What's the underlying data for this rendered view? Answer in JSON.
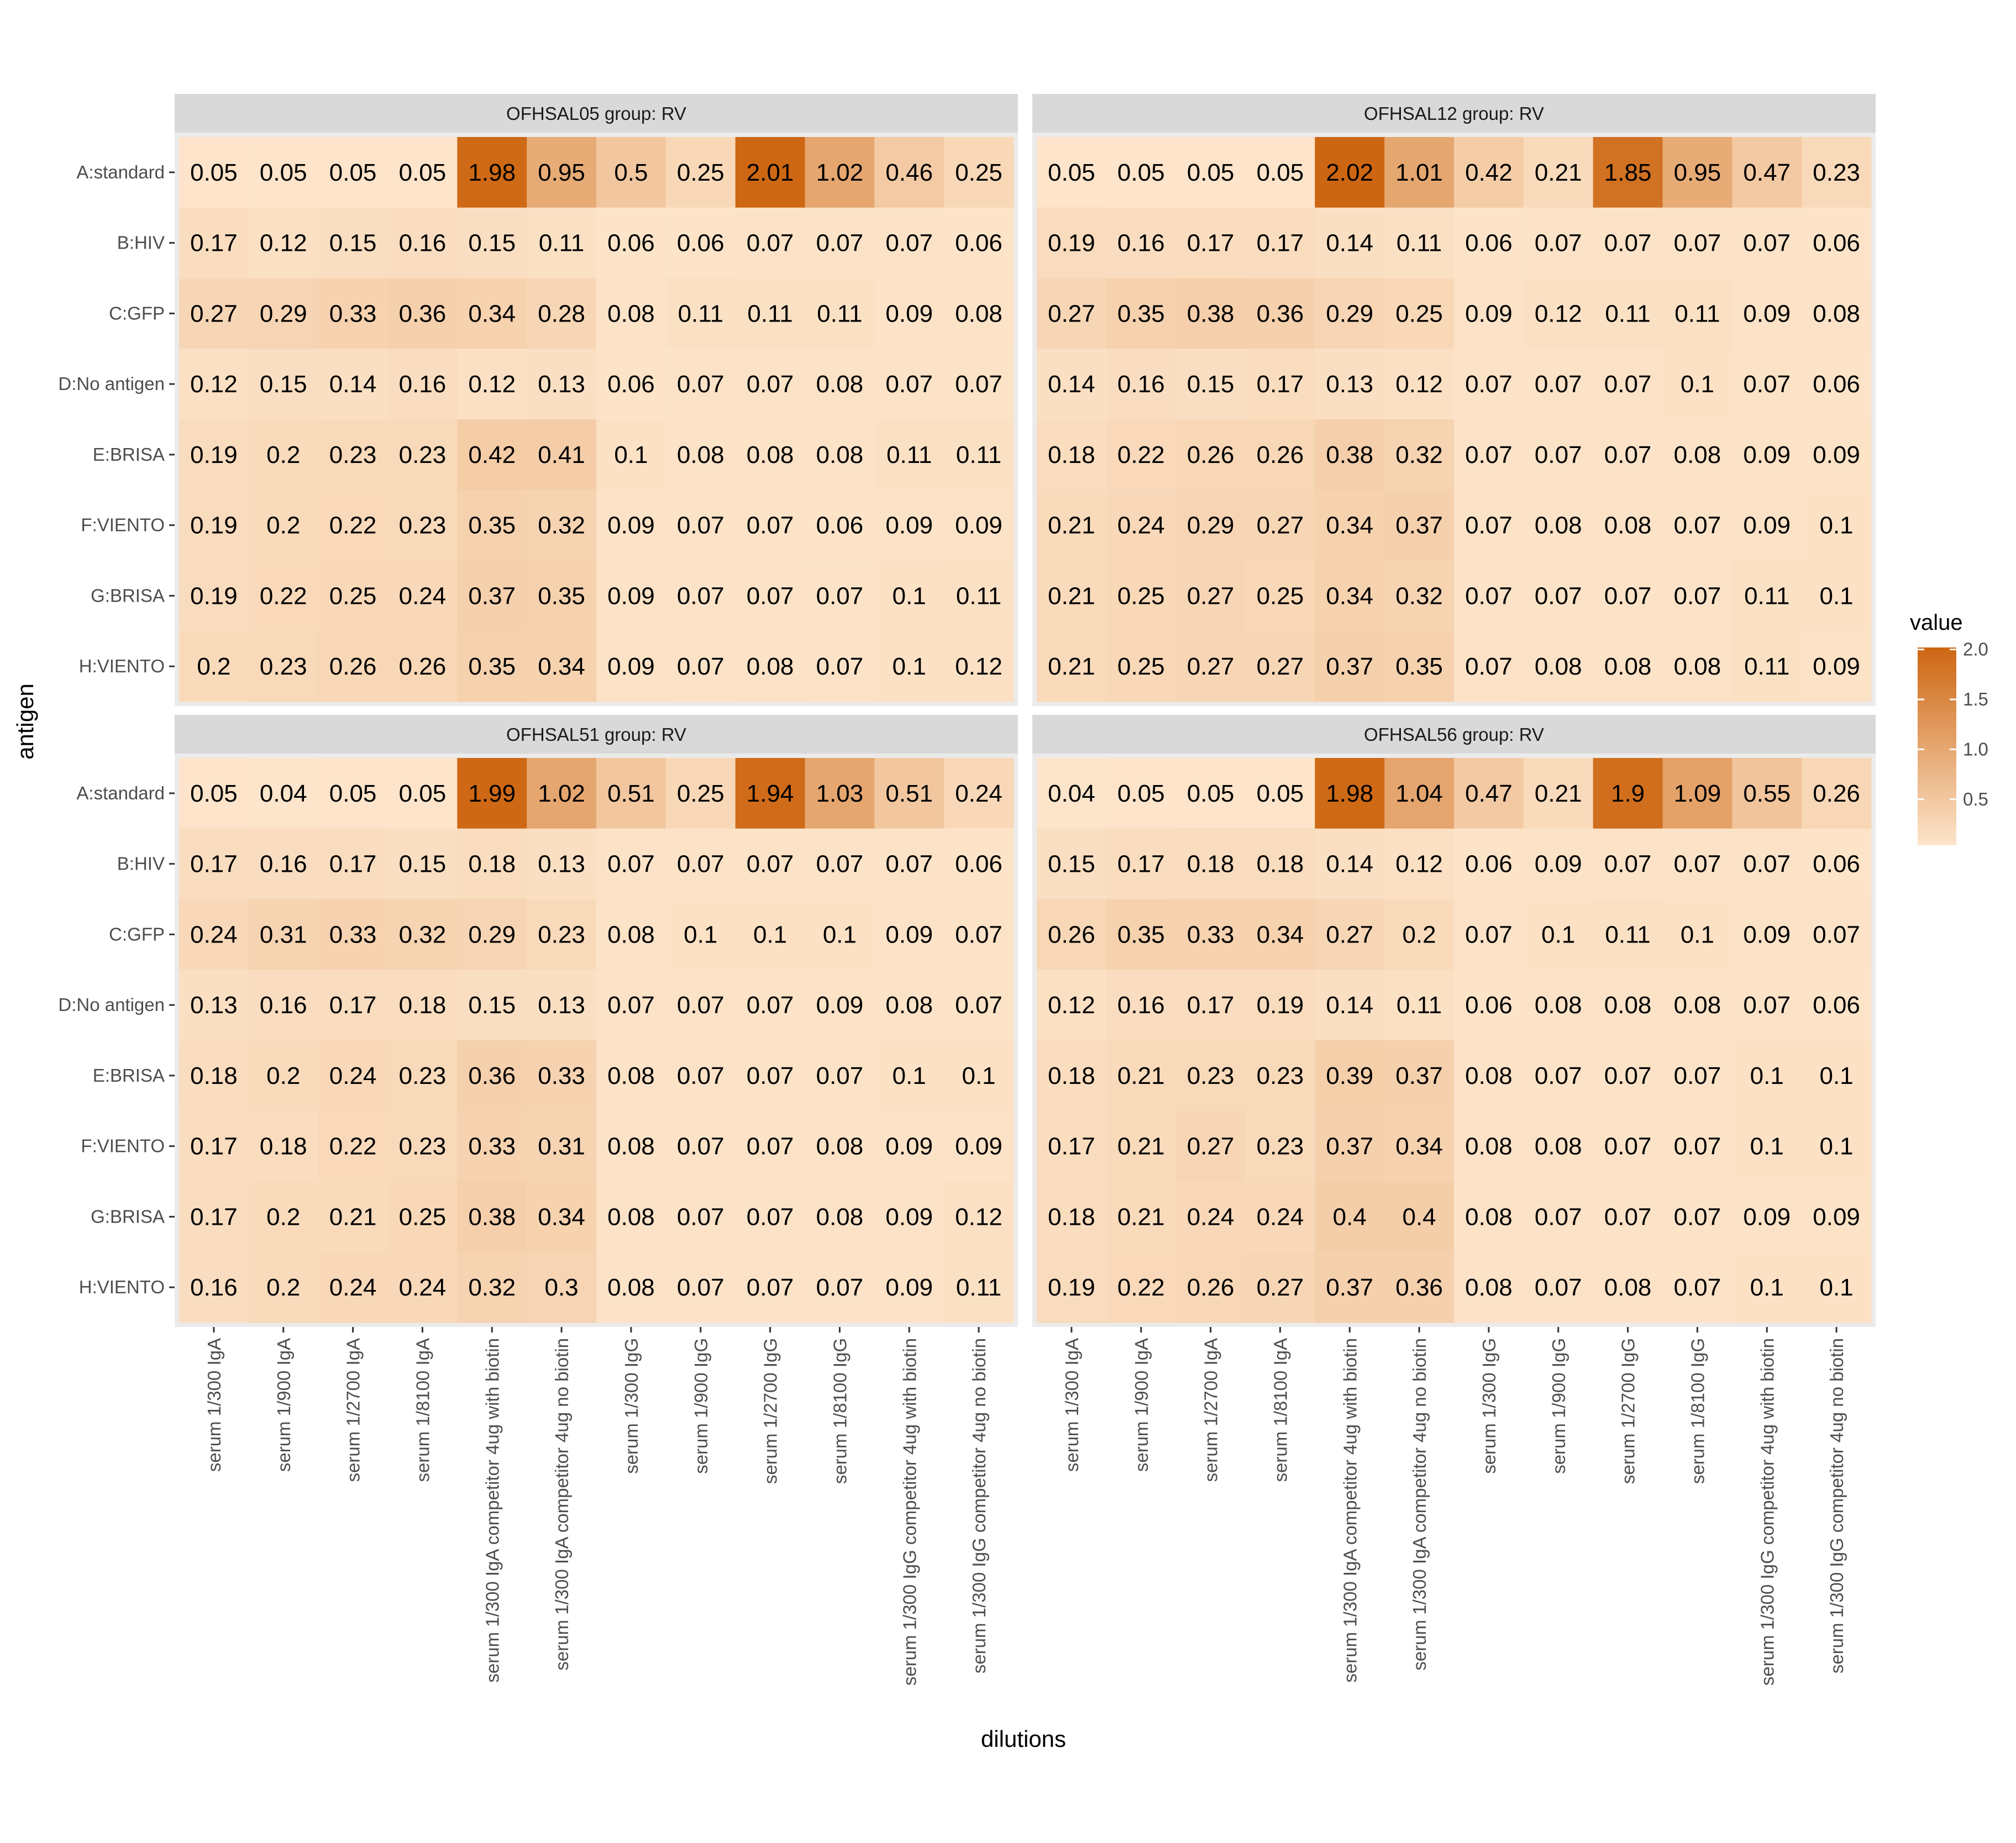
{
  "chart_data": {
    "type": "heatmap",
    "xlabel": "dilutions",
    "ylabel": "antigen",
    "legend": {
      "title": "value",
      "ticks": [
        2.0,
        1.5,
        1.0,
        0.5
      ],
      "tick_labels": [
        "2.0",
        "1.5",
        "1.0",
        "0.5"
      ],
      "range": [
        0.04,
        2.02
      ],
      "placement": "right"
    },
    "colors": {
      "low": "#fde5cb",
      "high": "#cd6612",
      "panel_bg": "#ebebeb",
      "strip_bg": "#d9d9d9"
    },
    "rows": [
      "A:standard",
      "B:HIV",
      "C:GFP",
      "D:No antigen",
      "E:BRISA",
      "F:VIENTO",
      "G:BRISA",
      "H:VIENTO"
    ],
    "columns": [
      "serum 1/300 IgA",
      "serum 1/900 IgA",
      "serum 1/2700 IgA",
      "serum 1/8100 IgA",
      "serum 1/300 IgA competitor 4ug with biotin",
      "serum 1/300 IgA competitor 4ug no biotin",
      "serum 1/300 IgG",
      "serum 1/900 IgG",
      "serum 1/2700 IgG",
      "serum 1/8100 IgG",
      "serum 1/300 IgG competitor 4ug with biotin",
      "serum 1/300 IgG competitor 4ug no biotin"
    ],
    "panels": [
      {
        "title": "OFHSAL05 group: RV",
        "values": [
          [
            0.05,
            0.05,
            0.05,
            0.05,
            1.98,
            0.95,
            0.5,
            0.25,
            2.01,
            1.02,
            0.46,
            0.25
          ],
          [
            0.17,
            0.12,
            0.15,
            0.16,
            0.15,
            0.11,
            0.06,
            0.06,
            0.07,
            0.07,
            0.07,
            0.06
          ],
          [
            0.27,
            0.29,
            0.33,
            0.36,
            0.34,
            0.28,
            0.08,
            0.11,
            0.11,
            0.11,
            0.09,
            0.08
          ],
          [
            0.12,
            0.15,
            0.14,
            0.16,
            0.12,
            0.13,
            0.06,
            0.07,
            0.07,
            0.08,
            0.07,
            0.07
          ],
          [
            0.19,
            0.2,
            0.23,
            0.23,
            0.42,
            0.41,
            0.1,
            0.08,
            0.08,
            0.08,
            0.11,
            0.11
          ],
          [
            0.19,
            0.2,
            0.22,
            0.23,
            0.35,
            0.32,
            0.09,
            0.07,
            0.07,
            0.06,
            0.09,
            0.09
          ],
          [
            0.19,
            0.22,
            0.25,
            0.24,
            0.37,
            0.35,
            0.09,
            0.07,
            0.07,
            0.07,
            0.1,
            0.11
          ],
          [
            0.2,
            0.23,
            0.26,
            0.26,
            0.35,
            0.34,
            0.09,
            0.07,
            0.08,
            0.07,
            0.1,
            0.12
          ]
        ]
      },
      {
        "title": "OFHSAL12 group: RV",
        "values": [
          [
            0.05,
            0.05,
            0.05,
            0.05,
            2.02,
            1.01,
            0.42,
            0.21,
            1.85,
            0.95,
            0.47,
            0.23
          ],
          [
            0.19,
            0.16,
            0.17,
            0.17,
            0.14,
            0.11,
            0.06,
            0.07,
            0.07,
            0.07,
            0.07,
            0.06
          ],
          [
            0.27,
            0.35,
            0.38,
            0.36,
            0.29,
            0.25,
            0.09,
            0.12,
            0.11,
            0.11,
            0.09,
            0.08
          ],
          [
            0.14,
            0.16,
            0.15,
            0.17,
            0.13,
            0.12,
            0.07,
            0.07,
            0.07,
            0.1,
            0.07,
            0.06
          ],
          [
            0.18,
            0.22,
            0.26,
            0.26,
            0.38,
            0.32,
            0.07,
            0.07,
            0.07,
            0.08,
            0.09,
            0.09
          ],
          [
            0.21,
            0.24,
            0.29,
            0.27,
            0.34,
            0.37,
            0.07,
            0.08,
            0.08,
            0.07,
            0.09,
            0.1
          ],
          [
            0.21,
            0.25,
            0.27,
            0.25,
            0.34,
            0.32,
            0.07,
            0.07,
            0.07,
            0.07,
            0.11,
            0.1
          ],
          [
            0.21,
            0.25,
            0.27,
            0.27,
            0.37,
            0.35,
            0.07,
            0.08,
            0.08,
            0.08,
            0.11,
            0.09
          ]
        ]
      },
      {
        "title": "OFHSAL51 group: RV",
        "values": [
          [
            0.05,
            0.04,
            0.05,
            0.05,
            1.99,
            1.02,
            0.51,
            0.25,
            1.94,
            1.03,
            0.51,
            0.24
          ],
          [
            0.17,
            0.16,
            0.17,
            0.15,
            0.18,
            0.13,
            0.07,
            0.07,
            0.07,
            0.07,
            0.07,
            0.06
          ],
          [
            0.24,
            0.31,
            0.33,
            0.32,
            0.29,
            0.23,
            0.08,
            0.1,
            0.1,
            0.1,
            0.09,
            0.07
          ],
          [
            0.13,
            0.16,
            0.17,
            0.18,
            0.15,
            0.13,
            0.07,
            0.07,
            0.07,
            0.09,
            0.08,
            0.07
          ],
          [
            0.18,
            0.2,
            0.24,
            0.23,
            0.36,
            0.33,
            0.08,
            0.07,
            0.07,
            0.07,
            0.1,
            0.1
          ],
          [
            0.17,
            0.18,
            0.22,
            0.23,
            0.33,
            0.31,
            0.08,
            0.07,
            0.07,
            0.08,
            0.09,
            0.09
          ],
          [
            0.17,
            0.2,
            0.21,
            0.25,
            0.38,
            0.34,
            0.08,
            0.07,
            0.07,
            0.08,
            0.09,
            0.12
          ],
          [
            0.16,
            0.2,
            0.24,
            0.24,
            0.32,
            0.3,
            0.08,
            0.07,
            0.07,
            0.07,
            0.09,
            0.11
          ]
        ]
      },
      {
        "title": "OFHSAL56 group: RV",
        "values": [
          [
            0.04,
            0.05,
            0.05,
            0.05,
            1.98,
            1.04,
            0.47,
            0.21,
            1.9,
            1.09,
            0.55,
            0.26
          ],
          [
            0.15,
            0.17,
            0.18,
            0.18,
            0.14,
            0.12,
            0.06,
            0.09,
            0.07,
            0.07,
            0.07,
            0.06
          ],
          [
            0.26,
            0.35,
            0.33,
            0.34,
            0.27,
            0.2,
            0.07,
            0.1,
            0.11,
            0.1,
            0.09,
            0.07
          ],
          [
            0.12,
            0.16,
            0.17,
            0.19,
            0.14,
            0.11,
            0.06,
            0.08,
            0.08,
            0.08,
            0.07,
            0.06
          ],
          [
            0.18,
            0.21,
            0.23,
            0.23,
            0.39,
            0.37,
            0.08,
            0.07,
            0.07,
            0.07,
            0.1,
            0.1
          ],
          [
            0.17,
            0.21,
            0.27,
            0.23,
            0.37,
            0.34,
            0.08,
            0.08,
            0.07,
            0.07,
            0.1,
            0.1
          ],
          [
            0.18,
            0.21,
            0.24,
            0.24,
            0.4,
            0.4,
            0.08,
            0.07,
            0.07,
            0.07,
            0.09,
            0.09
          ],
          [
            0.19,
            0.22,
            0.26,
            0.27,
            0.37,
            0.36,
            0.08,
            0.07,
            0.08,
            0.07,
            0.1,
            0.1
          ]
        ]
      }
    ]
  }
}
